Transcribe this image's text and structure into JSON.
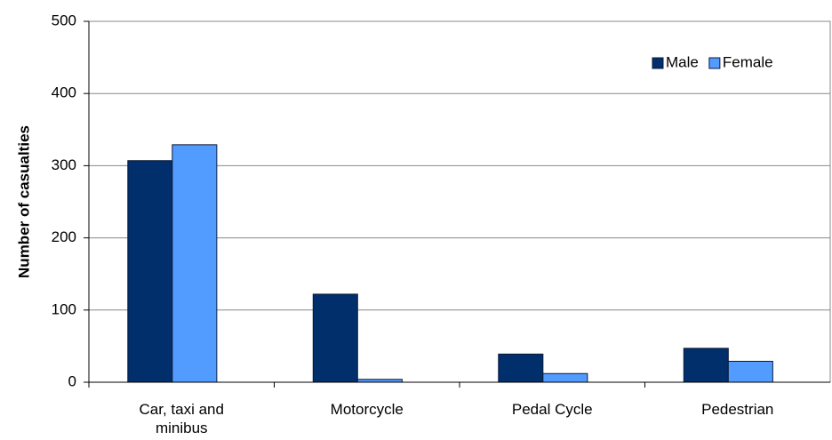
{
  "chart_data": {
    "type": "bar",
    "y_label": "Number of casualties",
    "categories": [
      "Car, taxi and minibus",
      "Motorcycle",
      "Pedal Cycle",
      "Pedestrian"
    ],
    "series": [
      {
        "name": "Male",
        "color": "#002f6c",
        "values": [
          307,
          122,
          39,
          47
        ]
      },
      {
        "name": "Female",
        "color": "#529cff",
        "values": [
          329,
          4,
          12,
          29
        ]
      }
    ],
    "ylim": [
      0,
      500
    ],
    "yticks": [
      0,
      100,
      200,
      300,
      400,
      500
    ],
    "grid": true,
    "legend": "top-right"
  }
}
